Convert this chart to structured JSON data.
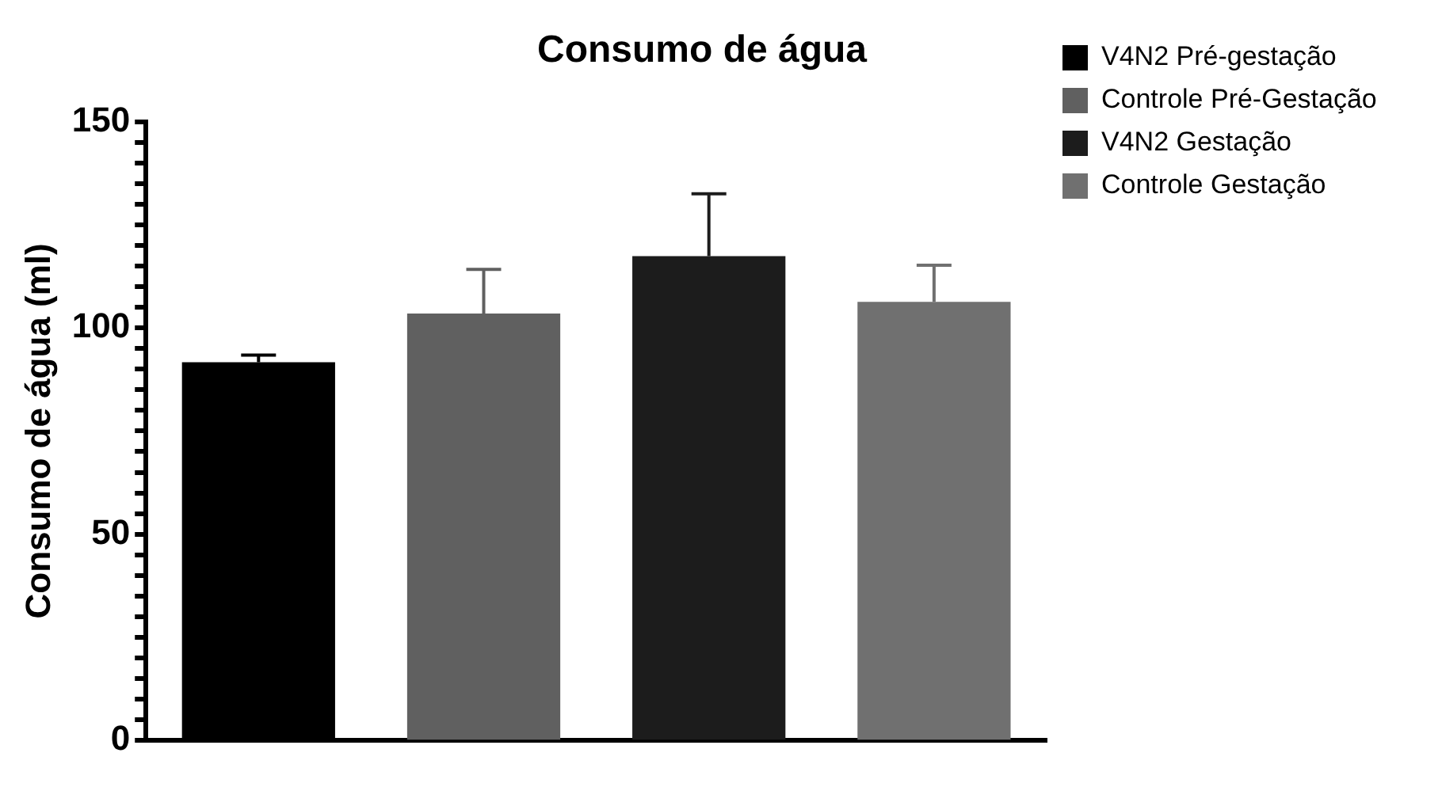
{
  "chart_data": {
    "type": "bar",
    "title": "Consumo de água",
    "ylabel": "Consumo de água (ml)",
    "categories": [
      null,
      null,
      null,
      null
    ],
    "series": [
      {
        "name": "V4N2 Pré-gestação",
        "color": "#000000",
        "values": [
          91.7,
          null,
          null,
          null
        ],
        "errors": [
          [
            91.7,
            93.4
          ],
          null,
          null,
          null
        ]
      },
      {
        "name": "Controle Pré-Gestação",
        "color": "#606060",
        "values": [
          null,
          103.5,
          null,
          null
        ],
        "errors": [
          null,
          [
            103.5,
            114.2
          ],
          null,
          null
        ]
      },
      {
        "name": "V4N2 Gestação",
        "color": "#1c1c1c",
        "values": [
          null,
          null,
          117.4,
          null
        ],
        "errors": [
          null,
          null,
          [
            117.4,
            132.5
          ],
          null
        ]
      },
      {
        "name": "Controle Gestação",
        "color": "#707070",
        "values": [
          null,
          null,
          null,
          106.3
        ],
        "errors": [
          null,
          null,
          null,
          [
            106.3,
            115.2
          ]
        ]
      }
    ],
    "ylim": [
      0,
      150
    ],
    "yticks": [
      0,
      {
        "value": 5,
        "label": null
      },
      {
        "value": 10,
        "label": null
      },
      {
        "value": 15,
        "label": null
      },
      {
        "value": 20,
        "label": null
      },
      {
        "value": 25,
        "label": null
      },
      {
        "value": 30,
        "label": null
      },
      {
        "value": 35,
        "label": null
      },
      {
        "value": 40,
        "label": null
      },
      {
        "value": 45,
        "label": null
      },
      50,
      {
        "value": 55,
        "label": null
      },
      {
        "value": 60,
        "label": null
      },
      {
        "value": 65,
        "label": null
      },
      {
        "value": 70,
        "label": null
      },
      {
        "value": 75,
        "label": null
      },
      {
        "value": 80,
        "label": null
      },
      {
        "value": 85,
        "label": null
      },
      {
        "value": 90,
        "label": null
      },
      {
        "value": 95,
        "label": null
      },
      100,
      {
        "value": 105,
        "label": null
      },
      {
        "value": 110,
        "label": null
      },
      {
        "value": 115,
        "label": null
      },
      {
        "value": 120,
        "label": null
      },
      {
        "value": 125,
        "label": null
      },
      {
        "value": 130,
        "label": null
      },
      {
        "value": 135,
        "label": null
      },
      {
        "value": 140,
        "label": null
      },
      {
        "value": 145,
        "label": null
      },
      150
    ],
    "grid": false,
    "legend": "right"
  }
}
